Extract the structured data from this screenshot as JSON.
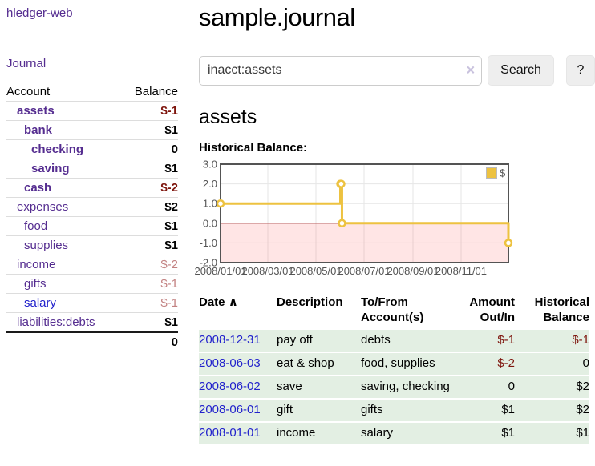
{
  "sidebar": {
    "app_title": "hledger-web",
    "nav_journal": "Journal",
    "accounts_table": {
      "header_account": "Account",
      "header_balance": "Balance",
      "rows": [
        {
          "name": "assets",
          "balance": "$-1",
          "indent": 0,
          "bold": true,
          "balance_style": "neg-strong",
          "link_color": "purple"
        },
        {
          "name": "bank",
          "balance": "$1",
          "indent": 1,
          "bold": true,
          "balance_style": "",
          "link_color": "purple"
        },
        {
          "name": "checking",
          "balance": "0",
          "indent": 2,
          "bold": true,
          "balance_style": "",
          "link_color": "purple"
        },
        {
          "name": "saving",
          "balance": "$1",
          "indent": 2,
          "bold": true,
          "balance_style": "",
          "link_color": "purple"
        },
        {
          "name": "cash",
          "balance": "$-2",
          "indent": 1,
          "bold": true,
          "balance_style": "neg-strong",
          "link_color": "purple"
        },
        {
          "name": "expenses",
          "balance": "$2",
          "indent": 0,
          "bold": false,
          "balance_style": "",
          "link_color": "purple"
        },
        {
          "name": "food",
          "balance": "$1",
          "indent": 1,
          "bold": false,
          "balance_style": "",
          "link_color": "purple"
        },
        {
          "name": "supplies",
          "balance": "$1",
          "indent": 1,
          "bold": false,
          "balance_style": "",
          "link_color": "purple"
        },
        {
          "name": "income",
          "balance": "$-2",
          "indent": 0,
          "bold": false,
          "balance_style": "neg-soft",
          "link_color": "purple"
        },
        {
          "name": "gifts",
          "balance": "$-1",
          "indent": 1,
          "bold": false,
          "balance_style": "neg-soft",
          "link_color": "purple"
        },
        {
          "name": "salary",
          "balance": "$-1",
          "indent": 1,
          "bold": false,
          "balance_style": "neg-soft",
          "link_color": "blue"
        },
        {
          "name": "liabilities:debts",
          "balance": "$1",
          "indent": 0,
          "bold": false,
          "balance_style": "",
          "link_color": "purple"
        }
      ],
      "total": "0"
    }
  },
  "header": {
    "title": "sample.journal"
  },
  "search": {
    "value": "inacct:assets",
    "clear_icon": "×",
    "button_label": "Search",
    "help_label": "?"
  },
  "account_page": {
    "title": "assets",
    "chart_label": "Historical Balance:"
  },
  "chart_data": {
    "type": "line",
    "title": "Historical Balance",
    "step": true,
    "series": [
      {
        "name": "$",
        "color": "#EDC240",
        "points": [
          {
            "x": "2008-01-01",
            "y": 1
          },
          {
            "x": "2008-06-01",
            "y": 2
          },
          {
            "x": "2008-06-02",
            "y": 2
          },
          {
            "x": "2008-06-03",
            "y": 0
          },
          {
            "x": "2008-12-31",
            "y": -1
          }
        ]
      }
    ],
    "x_range": [
      "2008-01-01",
      "2008-12-31"
    ],
    "ylim": [
      -2,
      3
    ],
    "y_ticks": [
      {
        "v": 3,
        "label": "3.0"
      },
      {
        "v": 2,
        "label": "2.0"
      },
      {
        "v": 1,
        "label": "1.0"
      },
      {
        "v": 0,
        "label": "0.0"
      },
      {
        "v": -1,
        "label": "-1.0"
      },
      {
        "v": -2,
        "label": "-2.0"
      }
    ],
    "x_ticks": [
      {
        "date": "2008-01-01",
        "label": "2008/01/01"
      },
      {
        "date": "2008-03-01",
        "label": "2008/03/01"
      },
      {
        "date": "2008-05-01",
        "label": "2008/05/01"
      },
      {
        "date": "2008-07-01",
        "label": "2008/07/01"
      },
      {
        "date": "2008-09-01",
        "label": "2008/09/01"
      },
      {
        "date": "2008-11-01",
        "label": "2008/11/01"
      }
    ],
    "legend": {
      "label": "$",
      "position": "top-right"
    },
    "grid": true,
    "colors": {
      "grid": "#E6E6E6",
      "border": "#545454",
      "axis_text": "#545454",
      "negative_region": "rgba(255,0,0,0.10)",
      "zero_line": "#800000",
      "marker_fill": "#FFFFFF"
    }
  },
  "register_table": {
    "sort_icon": "∧",
    "headers": [
      "Date",
      "Description",
      "To/From Account(s)",
      "Amount Out/In",
      "Historical Balance"
    ],
    "rows": [
      {
        "date": "2008-12-31",
        "description": "pay off",
        "accounts": "debts",
        "amount": "$-1",
        "balance": "$-1",
        "amount_negative": true,
        "balance_negative": true
      },
      {
        "date": "2008-06-03",
        "description": "eat & shop",
        "accounts": "food, supplies",
        "amount": "$-2",
        "balance": "0",
        "amount_negative": true,
        "balance_negative": false
      },
      {
        "date": "2008-06-02",
        "description": "save",
        "accounts": "saving, checking",
        "amount": "0",
        "balance": "$2",
        "amount_negative": false,
        "balance_negative": false
      },
      {
        "date": "2008-06-01",
        "description": "gift",
        "accounts": "gifts",
        "amount": "$1",
        "balance": "$2",
        "amount_negative": false,
        "balance_negative": false
      },
      {
        "date": "2008-01-01",
        "description": "income",
        "accounts": "salary",
        "amount": "$1",
        "balance": "$1",
        "amount_negative": false,
        "balance_negative": false
      }
    ]
  },
  "colors": {
    "purple_link": "#552D90",
    "blue_link": "#2222CC",
    "negative_strong": "#7E150D",
    "negative_soft": "#C28181",
    "row_green": "#E3EFE3",
    "series_yellow": "#EDC240"
  }
}
